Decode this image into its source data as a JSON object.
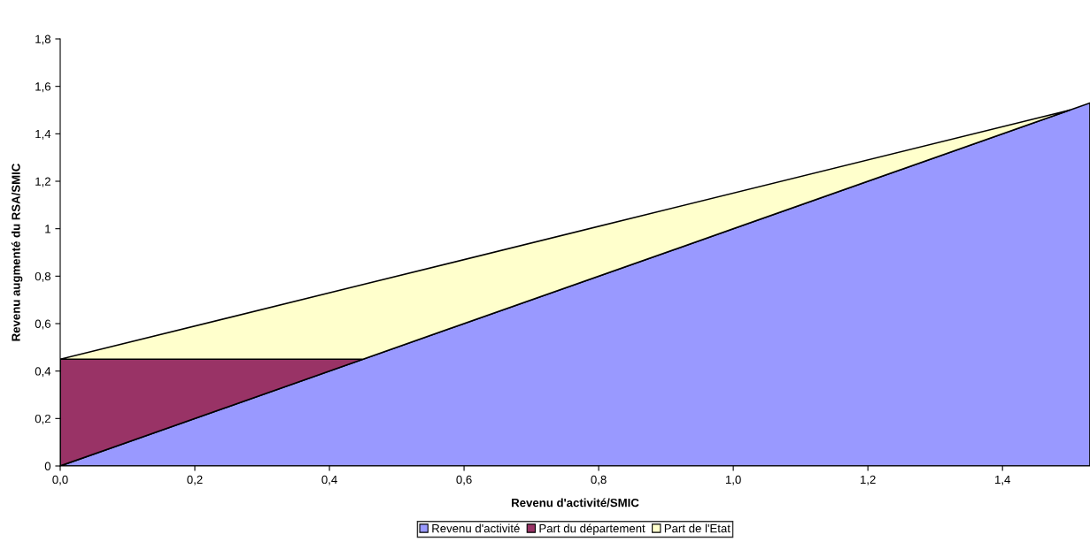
{
  "chart_data": {
    "type": "area",
    "stacked": true,
    "xlabel": "Revenu d'activité/SMIC",
    "ylabel": "Revenu augmenté du RSA/SMIC",
    "x": [
      0,
      0.45,
      1.5,
      1.53
    ],
    "series": [
      {
        "name": "Revenu d'activité",
        "color": "#9999ff",
        "values": [
          0,
          0.45,
          1.5,
          1.53
        ]
      },
      {
        "name": "Part du département",
        "color": "#993366",
        "values": [
          0.45,
          0,
          null,
          null
        ]
      },
      {
        "name": "Part de l'Etat",
        "color": "#ffffcc",
        "values": [
          0,
          0.315,
          0,
          null
        ]
      }
    ],
    "xlim": [
      0,
      1.53
    ],
    "xticks": [
      {
        "value": 0,
        "label": "0,0"
      },
      {
        "value": 0.2,
        "label": "0,2"
      },
      {
        "value": 0.4,
        "label": "0,4"
      },
      {
        "value": 0.6,
        "label": "0,6"
      },
      {
        "value": 0.8,
        "label": "0,8"
      },
      {
        "value": 1.0,
        "label": "1,0"
      },
      {
        "value": 1.2,
        "label": "1,2"
      },
      {
        "value": 1.4,
        "label": "1,4"
      }
    ],
    "ylim": [
      0,
      1.8
    ],
    "yticks": [
      0,
      {
        "value": 0.2,
        "label": "0,2"
      },
      {
        "value": 0.4,
        "label": "0,4"
      },
      {
        "value": 0.6,
        "label": "0,6"
      },
      {
        "value": 0.8,
        "label": "0,8"
      },
      1,
      {
        "value": 1.2,
        "label": "1,2"
      },
      {
        "value": 1.4,
        "label": "1,4"
      },
      {
        "value": 1.6,
        "label": "1,6"
      },
      {
        "value": 1.8,
        "label": "1,8"
      }
    ],
    "grid": false,
    "legend": "bottom"
  }
}
